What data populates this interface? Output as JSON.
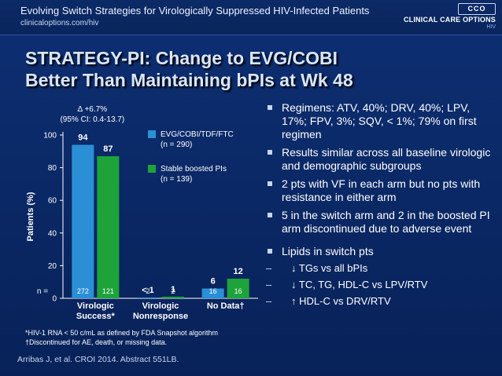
{
  "header": {
    "title": "Evolving Switch Strategies for Virologically Suppressed HIV-Infected Patients",
    "url": "clinicaloptions.com/hiv",
    "logo_text": "CCO",
    "brand_name": "CLINICAL CARE OPTIONS",
    "brand_sub": "HIV"
  },
  "slide_title": {
    "line1": "STRATEGY-PI: Change to EVG/COBI",
    "line2": "Better Than Maintaining bPIs at Wk 48"
  },
  "chart_data": {
    "type": "bar",
    "categories": [
      "Virologic Success*",
      "Virologic Nonresponse",
      "No Data†"
    ],
    "category_lines": [
      [
        "Virologic",
        "Success*"
      ],
      [
        "Virologic",
        "Nonresponse"
      ],
      [
        "No Data†"
      ]
    ],
    "series": [
      {
        "name": "EVG/COBI/TDF/FTC (n = 290)",
        "legend_lines": [
          "EVG/COBI/TDF/FTC",
          "(n = 290)"
        ],
        "color": "#2b8fd6",
        "values": [
          94,
          0.5,
          6
        ],
        "value_labels": [
          "94",
          "< 1",
          "6"
        ],
        "n": [
          "272",
          "2",
          "16"
        ]
      },
      {
        "name": "Stable boosted PIs (n = 139)",
        "legend_lines": [
          "Stable boosted PIs",
          "(n = 139)"
        ],
        "color": "#1ea33b",
        "values": [
          87,
          1,
          12
        ],
        "value_labels": [
          "87",
          "1",
          "12"
        ],
        "n": [
          "121",
          "2",
          "16"
        ]
      }
    ],
    "ylabel": "Patients (%)",
    "ylim": [
      0,
      100
    ],
    "yticks": [
      "0",
      "20",
      "40",
      "60",
      "80",
      "100"
    ],
    "n_label": "n =",
    "annotation": [
      "Δ +6.7%",
      "(95% CI: 0.4-13.7)"
    ],
    "grid": false,
    "legend_position": "top-right"
  },
  "bullets": [
    {
      "type": "square",
      "text": "Regimens: ATV, 40%; DRV, 40%; LPV, 17%; FPV, 3%; SQV, < 1%; 79% on first regimen"
    },
    {
      "type": "square",
      "text": "Results similar across all baseline virologic and demographic subgroups"
    },
    {
      "type": "square",
      "text": "2 pts with VF in each arm but no pts with resistance in either arm"
    },
    {
      "type": "square",
      "text": "5 in the switch arm and 2 in the boosted PI arm discontinued due to adverse event"
    },
    {
      "type": "square",
      "text": "Lipids in switch pts"
    },
    {
      "type": "dash",
      "text": "↓ TGs vs all bPIs"
    },
    {
      "type": "dash",
      "text": "↓ TC, TG, HDL-C vs LPV/RTV"
    },
    {
      "type": "dash",
      "text": "↑ HDL-C vs DRV/RTV"
    }
  ],
  "footnotes": [
    "*HIV-1 RNA < 50 c/mL as defined by FDA Snapshot algorithm",
    "†Discontinued for AE, death, or missing data."
  ],
  "citation": "Arribas J, et al. CROI 2014. Abstract 551LB.",
  "colors": {
    "background": "#0b2a66",
    "title_text": "#d9e6ff",
    "switch_bar": "#2b8fd6",
    "stable_bar": "#1ea33b"
  }
}
